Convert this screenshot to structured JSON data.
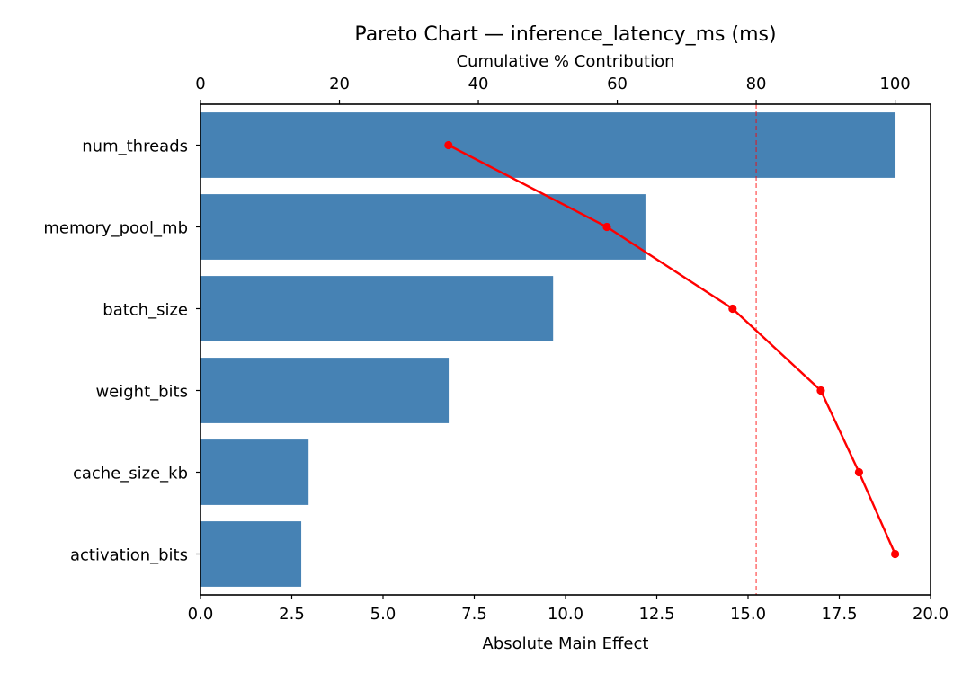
{
  "chart_data": {
    "type": "bar",
    "orientation": "horizontal",
    "title": "Pareto Chart — inference_latency_ms (ms)",
    "xlabel": "Absolute Main Effect",
    "x2label": "Cumulative % Contribution",
    "ylabel": "",
    "categories": [
      "num_threads",
      "memory_pool_mb",
      "batch_size",
      "weight_bits",
      "cache_size_kb",
      "activation_bits"
    ],
    "values": [
      19.04,
      12.19,
      9.66,
      6.8,
      2.96,
      2.76
    ],
    "xlim": [
      0,
      20
    ],
    "x_ticks": [
      "0.0",
      "2.5",
      "5.0",
      "7.5",
      "10.0",
      "12.5",
      "15.0",
      "17.5",
      "20.0"
    ],
    "x2lim": [
      0,
      105.1
    ],
    "x2_ticks": [
      "0",
      "20",
      "40",
      "60",
      "80",
      "100"
    ],
    "series": [
      {
        "name": "Absolute Main Effect",
        "type": "bar",
        "color": "#4682b4",
        "values": [
          19.04,
          12.19,
          9.66,
          6.8,
          2.96,
          2.76
        ]
      },
      {
        "name": "Cumulative % Contribution",
        "type": "line",
        "color": "#ff0000",
        "axis": "top",
        "values": [
          35.7,
          58.5,
          76.6,
          89.3,
          94.8,
          100.0
        ]
      }
    ],
    "reference_lines": [
      {
        "axis": "top",
        "value": 80,
        "style": "dashed",
        "color": "#ff0000"
      }
    ],
    "grid": false,
    "legend": null
  }
}
